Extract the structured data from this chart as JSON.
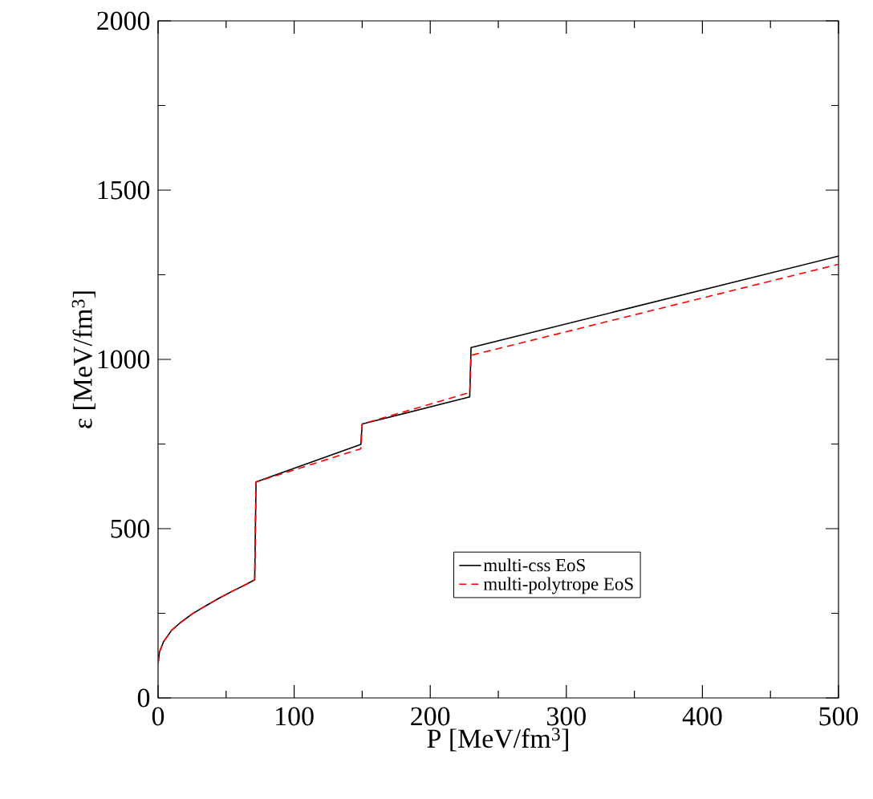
{
  "chart_data": {
    "type": "line",
    "xlabel": "P [MeV/fm$^{3}$]",
    "ylabel": "ε [MeV/fm$^{3}$]",
    "xlim": [
      0,
      500
    ],
    "ylim": [
      0,
      2000
    ],
    "xticks": [
      0,
      {
        "value": 50,
        "label": null
      },
      100,
      {
        "value": 150,
        "label": null
      },
      200,
      {
        "value": 250,
        "label": null
      },
      300,
      {
        "value": 350,
        "label": null
      },
      400,
      {
        "value": 450,
        "label": null
      },
      500
    ],
    "yticks": [
      0,
      {
        "value": 250,
        "label": null
      },
      500,
      {
        "value": 750,
        "label": null
      },
      1000,
      {
        "value": 1250,
        "label": null
      },
      1500,
      {
        "value": 1750,
        "label": null
      },
      2000
    ],
    "grid": false,
    "legend": "bottom right",
    "marker": "none",
    "series": [
      {
        "name": "multi-css EoS",
        "color": "#000000",
        "line_style": "solid",
        "x": [
          0,
          1,
          4,
          10,
          16,
          25,
          35,
          45,
          55,
          65,
          71,
          72,
          149,
          150,
          229,
          230,
          500
        ],
        "values": [
          100,
          135,
          166,
          200,
          221,
          248,
          272,
          295,
          316,
          336,
          349,
          638,
          749,
          809,
          889,
          1035,
          1305
        ]
      },
      {
        "name": "multi-polytrope EoS",
        "color": "#ff0000",
        "line_style": "dashed",
        "x": [
          0,
          1,
          4,
          10,
          16,
          25,
          35,
          45,
          55,
          65,
          71,
          72,
          149,
          150,
          229,
          230,
          500
        ],
        "values": [
          100,
          135,
          166,
          200,
          221,
          248,
          272,
          295,
          316,
          336,
          349,
          638,
          736,
          809,
          902,
          1012,
          1281
        ]
      }
    ]
  }
}
